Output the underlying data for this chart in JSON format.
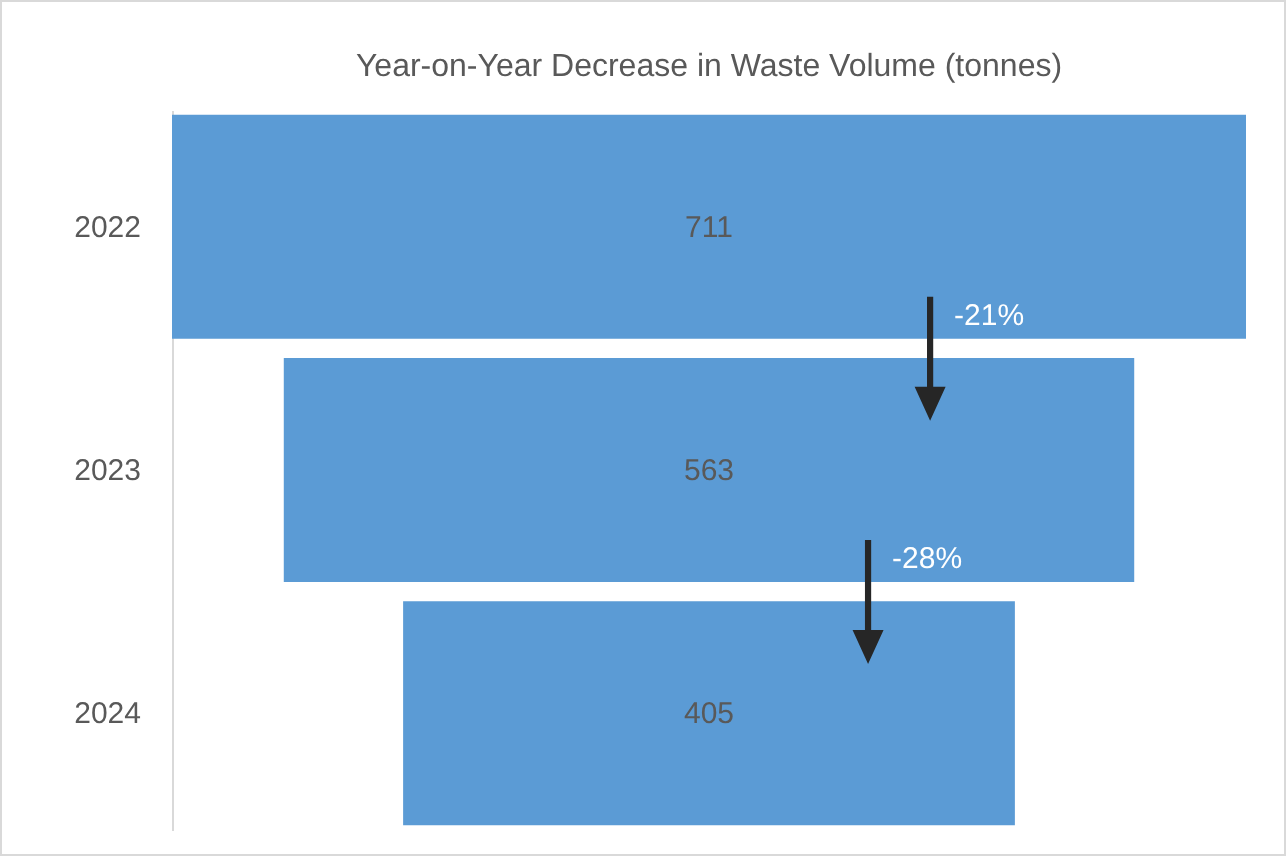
{
  "chart_data": {
    "type": "other",
    "title": "Year-on-Year Decrease in Waste Volume (tonnes)",
    "categories": [
      "2022",
      "2023",
      "2024"
    ],
    "values": [
      711,
      563,
      405
    ],
    "color": "#5b9bd5",
    "data_labels": true,
    "annotations": [
      "-21%",
      "-28%"
    ]
  }
}
